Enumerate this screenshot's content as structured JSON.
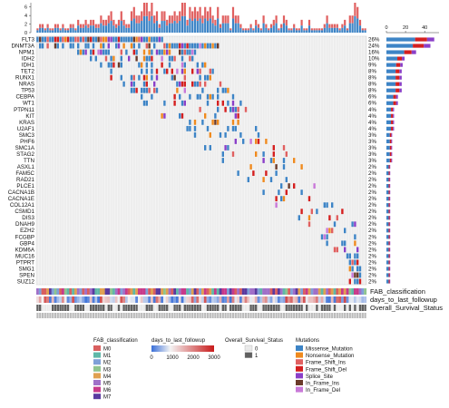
{
  "chart_data": {
    "type": "heatmap",
    "title": "",
    "genes": [
      "FLT3",
      "DNMT3A",
      "NPM1",
      "IDH2",
      "IDH1",
      "TET2",
      "RUNX1",
      "NRAS",
      "TP53",
      "CEBPA",
      "WT1",
      "PTPN11",
      "KIT",
      "KRAS",
      "U2AF1",
      "SMC3",
      "PHF6",
      "SMC1A",
      "STAG2",
      "TTN",
      "ASXL1",
      "FAM5C",
      "RAD21",
      "PLCE1",
      "CACNA1B",
      "CACNA1E",
      "COL12A1",
      "CSMD1",
      "DIS3",
      "DNAH9",
      "EZH2",
      "FCGBP",
      "GBP4",
      "KDM6A",
      "MUC16",
      "PTPRT",
      "SMG1",
      "SPEN",
      "SUZ12"
    ],
    "gene_percent": [
      "26%",
      "24%",
      "16%",
      "10%",
      "9%",
      "8%",
      "8%",
      "8%",
      "8%",
      "6%",
      "6%",
      "4%",
      "4%",
      "4%",
      "4%",
      "3%",
      "3%",
      "3%",
      "3%",
      "3%",
      "2%",
      "2%",
      "2%",
      "2%",
      "2%",
      "2%",
      "2%",
      "2%",
      "2%",
      "2%",
      "2%",
      "2%",
      "2%",
      "2%",
      "2%",
      "2%",
      "2%",
      "2%",
      "2%"
    ],
    "gene_counts": [
      50,
      46,
      31,
      19,
      17,
      16,
      16,
      16,
      16,
      12,
      12,
      8,
      8,
      8,
      8,
      6,
      6,
      6,
      6,
      6,
      4,
      4,
      4,
      4,
      4,
      4,
      4,
      4,
      4,
      4,
      4,
      4,
      4,
      4,
      4,
      4,
      4,
      4,
      4
    ],
    "n_samples": 130,
    "top_axis": {
      "ticks": [
        "0",
        "2",
        "4",
        "6"
      ],
      "max": 7
    },
    "right_axis": {
      "ticks": [
        "0",
        "20",
        "40"
      ],
      "max": 55
    },
    "track_labels": [
      "FAB_classification",
      "days_to_last_followup",
      "Overall_Survival_Status"
    ],
    "legends": {
      "fab": {
        "title": "FAB_classification",
        "items": [
          {
            "label": "M0",
            "color": "#D95F5F"
          },
          {
            "label": "M1",
            "color": "#5FB8A8"
          },
          {
            "label": "M2",
            "color": "#7FA0D8"
          },
          {
            "label": "M3",
            "color": "#8FC48F"
          },
          {
            "label": "M4",
            "color": "#E0A050"
          },
          {
            "label": "M5",
            "color": "#A070C8"
          },
          {
            "label": "M6",
            "color": "#C83A8A"
          },
          {
            "label": "M7",
            "color": "#5A3AA0"
          }
        ]
      },
      "followup": {
        "title": "days_to_last_followup",
        "ticks": [
          "0",
          "1000",
          "2000",
          "3000"
        ],
        "max": 3000,
        "colors": [
          "#3A6FD8",
          "#F4F4F4",
          "#C81A1A"
        ]
      },
      "survival": {
        "title": "Overall_Survival_Status",
        "items": [
          {
            "label": "0",
            "color": "#EAEAEA"
          },
          {
            "label": "1",
            "color": "#606060"
          }
        ]
      },
      "mutations": {
        "title": "Mutations",
        "items": [
          {
            "label": "Missense_Mutation",
            "color": "#3D84C6"
          },
          {
            "label": "Nonsense_Mutation",
            "color": "#EF8A1E"
          },
          {
            "label": "Frame_Shift_Ins",
            "color": "#E06060"
          },
          {
            "label": "Frame_Shift_Del",
            "color": "#D41F1F"
          },
          {
            "label": "Splice_Site",
            "color": "#8A3FC8"
          },
          {
            "label": "In_Frame_Ins",
            "color": "#6A3A2A"
          },
          {
            "label": "In_Frame_Del",
            "color": "#C878D8"
          }
        ]
      }
    }
  }
}
